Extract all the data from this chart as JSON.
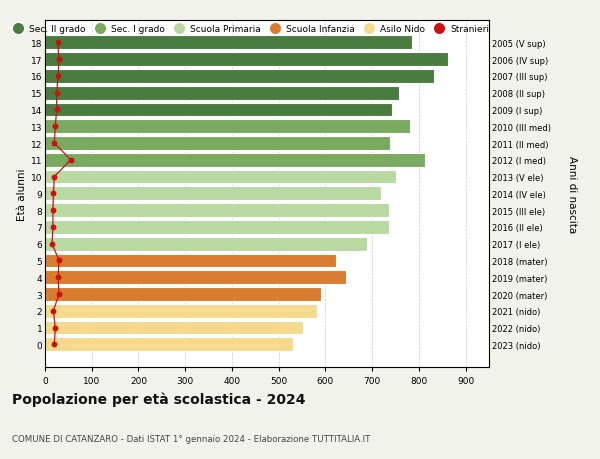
{
  "ages": [
    18,
    17,
    16,
    15,
    14,
    13,
    12,
    11,
    10,
    9,
    8,
    7,
    6,
    5,
    4,
    3,
    2,
    1,
    0
  ],
  "bar_values": [
    785,
    862,
    832,
    758,
    742,
    782,
    738,
    812,
    752,
    718,
    737,
    737,
    688,
    622,
    643,
    591,
    582,
    552,
    530
  ],
  "stranieri_values": [
    27,
    30,
    28,
    25,
    25,
    22,
    20,
    55,
    20,
    18,
    17,
    17,
    15,
    30,
    28,
    30,
    18,
    22,
    20
  ],
  "right_labels": [
    "2005 (V sup)",
    "2006 (IV sup)",
    "2007 (III sup)",
    "2008 (II sup)",
    "2009 (I sup)",
    "2010 (III med)",
    "2011 (II med)",
    "2012 (I med)",
    "2013 (V ele)",
    "2014 (IV ele)",
    "2015 (III ele)",
    "2016 (II ele)",
    "2017 (I ele)",
    "2018 (mater)",
    "2019 (mater)",
    "2020 (mater)",
    "2021 (nido)",
    "2022 (nido)",
    "2023 (nido)"
  ],
  "bar_colors": [
    "#4a7c40",
    "#4a7c40",
    "#4a7c40",
    "#4a7c40",
    "#4a7c40",
    "#7aaa5f",
    "#7aaa5f",
    "#7aaa5f",
    "#b8d9a0",
    "#b8d9a0",
    "#b8d9a0",
    "#b8d9a0",
    "#b8d9a0",
    "#d97c30",
    "#d97c30",
    "#d97c30",
    "#f5d98c",
    "#f5d98c",
    "#f5d98c"
  ],
  "legend_labels": [
    "Sec. II grado",
    "Sec. I grado",
    "Scuola Primaria",
    "Scuola Infanzia",
    "Asilo Nido",
    "Stranieri"
  ],
  "legend_colors": [
    "#4a7c40",
    "#7aaa5f",
    "#b8d9a0",
    "#d97c30",
    "#f5d98c",
    "#cc1111"
  ],
  "stranieri_color": "#cc1111",
  "title": "Popolazione per età scolastica - 2024",
  "subtitle": "COMUNE DI CATANZARO - Dati ISTAT 1° gennaio 2024 - Elaborazione TUTTITALIA.IT",
  "ylabel": "Età alunni",
  "right_ylabel": "Anni di nascita",
  "xlim": [
    0,
    950
  ],
  "xticks": [
    0,
    100,
    200,
    300,
    400,
    500,
    600,
    700,
    800,
    900
  ],
  "background_color": "#f2f2ec",
  "bar_background": "#ffffff",
  "grid_color": "#cccccc",
  "bar_edgecolor": "#ffffff",
  "bar_height": 0.82
}
